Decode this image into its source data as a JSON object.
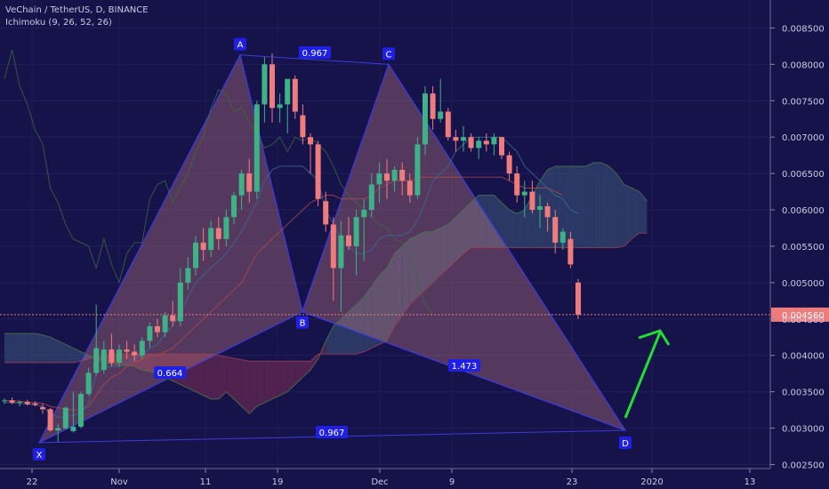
{
  "header": {
    "symbol_line": "VeChain / TetherUS, D, BINANCE",
    "indicator_line": "Ichimoku (9, 26, 52, 26)"
  },
  "colors": {
    "background": "#16124a",
    "bull_candle": "#3fb187",
    "bear_candle": "#ef7c7c",
    "pattern_stroke": "#3b3be0",
    "pattern_fill": "#d98a8a",
    "arrow": "#22dd33",
    "price_tag": "#ef7c7c",
    "label_bg": "#1f1fe6"
  },
  "chart_data": {
    "type": "candlestick",
    "y_axis": {
      "ticks": [
        "0.002500",
        "0.003000",
        "0.003500",
        "0.004000",
        "0.004500",
        "0.005000",
        "0.005500",
        "0.006000",
        "0.006500",
        "0.007000",
        "0.007500",
        "0.008000",
        "0.008500"
      ],
      "range": [
        0.00222,
        0.0087
      ],
      "current_price": "0.004560"
    },
    "x_axis": {
      "tick_labels": [
        "22",
        "Nov",
        "11",
        "19",
        "Dec",
        "9",
        "23",
        "2020",
        "13"
      ]
    },
    "candles": [
      [
        0.00337,
        0.00341,
        0.00333,
        0.00338
      ],
      [
        0.00338,
        0.00342,
        0.00333,
        0.00335
      ],
      [
        0.00335,
        0.00338,
        0.0033,
        0.00336
      ],
      [
        0.00336,
        0.00339,
        0.00331,
        0.00333
      ],
      [
        0.00334,
        0.00337,
        0.0033,
        0.00332
      ],
      [
        0.00329,
        0.00333,
        0.0032,
        0.00326
      ],
      [
        0.00326,
        0.00328,
        0.00295,
        0.00297
      ],
      [
        0.00297,
        0.00306,
        0.0028,
        0.003
      ],
      [
        0.003,
        0.0033,
        0.00298,
        0.00328
      ],
      [
        0.00296,
        0.0035,
        0.00294,
        0.00302
      ],
      [
        0.00302,
        0.0035,
        0.003,
        0.00347
      ],
      [
        0.00347,
        0.00383,
        0.00344,
        0.00376
      ],
      [
        0.00376,
        0.0047,
        0.00372,
        0.0041
      ],
      [
        0.0038,
        0.0042,
        0.00375,
        0.00408
      ],
      [
        0.00408,
        0.0043,
        0.00385,
        0.0039
      ],
      [
        0.0039,
        0.00415,
        0.00385,
        0.00408
      ],
      [
        0.00408,
        0.0042,
        0.00395,
        0.00405
      ],
      [
        0.00405,
        0.00415,
        0.00392,
        0.004
      ],
      [
        0.004,
        0.00425,
        0.00395,
        0.0042
      ],
      [
        0.0042,
        0.00445,
        0.0041,
        0.0044
      ],
      [
        0.0044,
        0.0045,
        0.00425,
        0.00432
      ],
      [
        0.00432,
        0.0046,
        0.00425,
        0.00455
      ],
      [
        0.00455,
        0.00475,
        0.0044,
        0.00447
      ],
      [
        0.00447,
        0.0052,
        0.0044,
        0.005
      ],
      [
        0.005,
        0.00535,
        0.0049,
        0.0052
      ],
      [
        0.0052,
        0.00565,
        0.0051,
        0.00555
      ],
      [
        0.00555,
        0.00575,
        0.0053,
        0.00545
      ],
      [
        0.00545,
        0.00585,
        0.00535,
        0.00575
      ],
      [
        0.00575,
        0.0059,
        0.00545,
        0.0056
      ],
      [
        0.0056,
        0.006,
        0.0055,
        0.0059
      ],
      [
        0.0059,
        0.00625,
        0.0058,
        0.0062
      ],
      [
        0.0062,
        0.00655,
        0.006,
        0.0065
      ],
      [
        0.0065,
        0.0067,
        0.0061,
        0.00625
      ],
      [
        0.00625,
        0.0075,
        0.00615,
        0.00745
      ],
      [
        0.00745,
        0.0081,
        0.0072,
        0.008
      ],
      [
        0.008,
        0.00815,
        0.0072,
        0.0074
      ],
      [
        0.0074,
        0.0076,
        0.0072,
        0.00745
      ],
      [
        0.00745,
        0.00775,
        0.00705,
        0.0078
      ],
      [
        0.0078,
        0.00785,
        0.00725,
        0.00735
      ],
      [
        0.0073,
        0.00745,
        0.0069,
        0.007
      ],
      [
        0.007,
        0.00705,
        0.0065,
        0.0069
      ],
      [
        0.0069,
        0.00695,
        0.00605,
        0.00615
      ],
      [
        0.00612,
        0.00625,
        0.0057,
        0.0058
      ],
      [
        0.0058,
        0.0059,
        0.00475,
        0.0052
      ],
      [
        0.0052,
        0.00585,
        0.0046,
        0.00565
      ],
      [
        0.00565,
        0.0059,
        0.00545,
        0.0055
      ],
      [
        0.0055,
        0.006,
        0.0051,
        0.0059
      ],
      [
        0.0059,
        0.00615,
        0.0053,
        0.006
      ],
      [
        0.006,
        0.0065,
        0.0059,
        0.00635
      ],
      [
        0.00635,
        0.00665,
        0.0061,
        0.0065
      ],
      [
        0.0065,
        0.0067,
        0.00615,
        0.0064
      ],
      [
        0.0064,
        0.0066,
        0.00625,
        0.00655
      ],
      [
        0.00655,
        0.00665,
        0.0062,
        0.0064
      ],
      [
        0.0064,
        0.0065,
        0.0061,
        0.0062
      ],
      [
        0.0062,
        0.007,
        0.00615,
        0.0069
      ],
      [
        0.0069,
        0.0077,
        0.00675,
        0.0076
      ],
      [
        0.0076,
        0.0077,
        0.0071,
        0.00725
      ],
      [
        0.00725,
        0.0078,
        0.0072,
        0.00735
      ],
      [
        0.00735,
        0.0074,
        0.00695,
        0.007
      ],
      [
        0.007,
        0.0071,
        0.0068,
        0.00695
      ],
      [
        0.00695,
        0.00715,
        0.0068,
        0.007
      ],
      [
        0.007,
        0.00705,
        0.0068,
        0.00685
      ],
      [
        0.00685,
        0.007,
        0.0067,
        0.00695
      ],
      [
        0.00695,
        0.00705,
        0.0068,
        0.0069
      ],
      [
        0.0069,
        0.00705,
        0.00675,
        0.007
      ],
      [
        0.007,
        0.007,
        0.0067,
        0.00675
      ],
      [
        0.00675,
        0.0068,
        0.0064,
        0.0065
      ],
      [
        0.0065,
        0.0066,
        0.0061,
        0.0062
      ],
      [
        0.0062,
        0.0064,
        0.0059,
        0.00625
      ],
      [
        0.00625,
        0.0064,
        0.00595,
        0.006
      ],
      [
        0.006,
        0.0062,
        0.00575,
        0.00605
      ],
      [
        0.00605,
        0.0061,
        0.0057,
        0.0059
      ],
      [
        0.0059,
        0.006,
        0.0054,
        0.00555
      ],
      [
        0.00555,
        0.00575,
        0.00545,
        0.0057
      ],
      [
        0.0056,
        0.0057,
        0.0052,
        0.00525
      ],
      [
        0.005,
        0.00505,
        0.0045,
        0.00456
      ]
    ],
    "ichimoku": {
      "tenkan": [
        0.00335,
        0.00335,
        0.00334,
        0.00333,
        0.00332,
        0.0033,
        0.0032,
        0.00315,
        0.00315,
        0.00318,
        0.0032,
        0.00335,
        0.00375,
        0.00383,
        0.00385,
        0.00385,
        0.0039,
        0.00395,
        0.004,
        0.0041,
        0.00415,
        0.0043,
        0.0044,
        0.0046,
        0.0048,
        0.005,
        0.0051,
        0.0052,
        0.0053,
        0.0054,
        0.00555,
        0.0057,
        0.0059,
        0.0061,
        0.0064,
        0.00655,
        0.0066,
        0.0066,
        0.0066,
        0.0066,
        0.0065,
        0.0064,
        0.006,
        0.0058,
        0.0056,
        0.0055,
        0.0054,
        0.0054,
        0.00545,
        0.0056,
        0.00565,
        0.00565,
        0.00565,
        0.0057,
        0.00585,
        0.0061,
        0.0064,
        0.0065,
        0.0066,
        0.0068,
        0.0069,
        0.007,
        0.007,
        0.007,
        0.007,
        0.007,
        0.0069,
        0.0068,
        0.0066,
        0.0065,
        0.0064,
        0.0063,
        0.0062,
        0.00615,
        0.006,
        0.00595
      ],
      "kijun": [
        0.00338,
        0.00338,
        0.00337,
        0.00336,
        0.00335,
        0.00334,
        0.0033,
        0.00328,
        0.00326,
        0.00325,
        0.00325,
        0.0033,
        0.00345,
        0.0036,
        0.0037,
        0.00375,
        0.00385,
        0.0039,
        0.00395,
        0.004,
        0.004,
        0.00405,
        0.0041,
        0.0042,
        0.0043,
        0.0044,
        0.0045,
        0.0046,
        0.0047,
        0.0048,
        0.0049,
        0.005,
        0.0052,
        0.0054,
        0.0055,
        0.0056,
        0.0057,
        0.0058,
        0.0059,
        0.006,
        0.0061,
        0.00615,
        0.0062,
        0.0062,
        0.00615,
        0.00615,
        0.00615,
        0.00615,
        0.0062,
        0.0063,
        0.00635,
        0.0064,
        0.0064,
        0.0064,
        0.00645,
        0.00645,
        0.00645,
        0.00645,
        0.00645,
        0.00645,
        0.00645,
        0.00645,
        0.00645,
        0.00645,
        0.00645,
        0.00645,
        0.0064,
        0.00635,
        0.0063,
        0.0063,
        0.0063,
        0.0063,
        0.00625,
        0.0062
      ],
      "chikou": [
        0.0078,
        0.0082,
        0.0077,
        0.00745,
        0.0071,
        0.0069,
        0.0063,
        0.0061,
        0.0058,
        0.0056,
        0.00555,
        0.0055,
        0.0052,
        0.0056,
        0.00525,
        0.005,
        0.0054,
        0.00555,
        0.00555,
        0.00615,
        0.00635,
        0.0064,
        0.0061,
        0.0063,
        0.0065,
        0.0068,
        0.007,
        0.0074,
        0.00765,
        0.0076,
        0.00735,
        0.0074,
        0.0072,
        0.00705,
        0.00685,
        0.0069,
        0.007,
        0.0068,
        0.007,
        0.00695,
        0.007,
        0.0069,
        0.0068,
        0.0066,
        0.00635,
        0.0062,
        0.0061,
        0.006,
        0.0059,
        0.0058,
        0.00575,
        0.0056,
        0.00555,
        0.0054,
        0.005,
        0.0047,
        0.00456
      ],
      "span_a": [
        0.0043,
        0.0043,
        0.0043,
        0.0043,
        0.0043,
        0.00428,
        0.00425,
        0.0042,
        0.00415,
        0.0041,
        0.00405,
        0.004,
        0.00395,
        0.0039,
        0.00388,
        0.00387,
        0.00386,
        0.00385,
        0.0038,
        0.00378,
        0.00375,
        0.0037,
        0.00365,
        0.0036,
        0.00355,
        0.0035,
        0.00345,
        0.0034,
        0.0034,
        0.0035,
        0.0034,
        0.0033,
        0.0032,
        0.0033,
        0.00335,
        0.0034,
        0.00345,
        0.0035,
        0.0036,
        0.0037,
        0.0038,
        0.00395,
        0.0042,
        0.0044,
        0.0045,
        0.0046,
        0.0047,
        0.0048,
        0.00495,
        0.0051,
        0.0052,
        0.0054,
        0.0055,
        0.0056,
        0.00565,
        0.0057,
        0.0057,
        0.00575,
        0.0058,
        0.0059,
        0.006,
        0.0061,
        0.0062,
        0.0062,
        0.0062,
        0.0061,
        0.006,
        0.00595,
        0.006,
        0.0062,
        0.0064,
        0.00655,
        0.0066,
        0.0066,
        0.0066,
        0.0066,
        0.0066,
        0.00665,
        0.00665,
        0.0066,
        0.0065,
        0.00635,
        0.0063,
        0.00625,
        0.00612
      ],
      "span_b": [
        0.0039,
        0.0039,
        0.0039,
        0.0039,
        0.0039,
        0.0039,
        0.0039,
        0.0039,
        0.0039,
        0.0039,
        0.00392,
        0.00395,
        0.00398,
        0.004,
        0.00402,
        0.00402,
        0.00402,
        0.00402,
        0.00402,
        0.00402,
        0.00402,
        0.00402,
        0.00402,
        0.00402,
        0.00402,
        0.00402,
        0.00402,
        0.00402,
        0.004,
        0.00398,
        0.00396,
        0.00394,
        0.00392,
        0.00392,
        0.00392,
        0.00392,
        0.00392,
        0.00392,
        0.00392,
        0.00392,
        0.00392,
        0.00402,
        0.00402,
        0.00402,
        0.00402,
        0.00402,
        0.00402,
        0.00405,
        0.0041,
        0.00415,
        0.0042,
        0.0044,
        0.00455,
        0.0047,
        0.0048,
        0.0049,
        0.005,
        0.0051,
        0.0052,
        0.0053,
        0.0054,
        0.00548,
        0.00548,
        0.00548,
        0.00548,
        0.00548,
        0.00548,
        0.00548,
        0.00548,
        0.00548,
        0.00548,
        0.00548,
        0.00548,
        0.00548,
        0.00548,
        0.00548,
        0.00548,
        0.00548,
        0.00548,
        0.00548,
        0.00548,
        0.0055,
        0.0056,
        0.00568,
        0.00568
      ]
    },
    "pattern": {
      "points": [
        {
          "label": "X",
          "value": 0.0028
        },
        {
          "label": "A",
          "value": 0.00813
        },
        {
          "label": "B",
          "value": 0.0046
        },
        {
          "label": "C",
          "value": 0.008
        },
        {
          "label": "D",
          "value": 0.00297
        }
      ],
      "ratios": [
        {
          "label": "0.967",
          "between": "A-C"
        },
        {
          "label": "0.664",
          "between": "X-B"
        },
        {
          "label": "1.473",
          "between": "B-D"
        },
        {
          "label": "0.967",
          "between": "X-D"
        }
      ]
    }
  }
}
